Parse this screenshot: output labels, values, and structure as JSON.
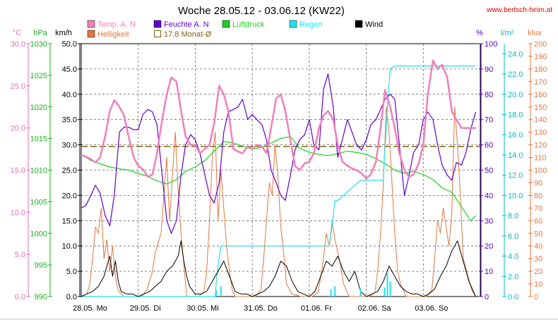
{
  "chart_data": {
    "type": "line",
    "title": "Woche 28.05.12 - 03.06.12 (KW22)",
    "source": "www.bertsch-heim.at",
    "grid": true,
    "axis_units": {
      "temp": "°C",
      "press": "hPa",
      "wind": "km/h",
      "hum": "%",
      "rain": "l/m²",
      "lux": "klux"
    },
    "axes": {
      "temp": {
        "min": 0,
        "max": 30,
        "ticks": [
          "0.0",
          "5.0",
          "10.0",
          "15.0",
          "20.0",
          "25.0",
          "30.0"
        ],
        "color": "#e070b0"
      },
      "press": {
        "min": 990,
        "max": 1030,
        "ticks": [
          "990",
          "995",
          "1000",
          "1005",
          "1010",
          "1015",
          "1020",
          "1025",
          "1030"
        ],
        "color": "#20b020"
      },
      "wind": {
        "min": 0,
        "max": 50,
        "ticks": [
          "0.0",
          "5.0",
          "10.0",
          "15.0",
          "20.0",
          "25.0",
          "30.0",
          "35.0",
          "40.0",
          "45.0",
          "50.0"
        ],
        "color": "#000000"
      },
      "hum": {
        "min": 0,
        "max": 100,
        "ticks": [
          "0",
          "10",
          "20",
          "30",
          "40",
          "50",
          "60",
          "70",
          "80",
          "90",
          "100"
        ],
        "color": "#5000c0"
      },
      "rain": {
        "min": 0,
        "max": 25,
        "ticks": [
          "0.0",
          "2.0",
          "4.0",
          "6.0",
          "8.0",
          "10.0",
          "12.0",
          "14.0",
          "16.0",
          "18.0",
          "20.0",
          "22.0",
          "24.0"
        ],
        "color": "#00b8c8"
      },
      "lux": {
        "min": 0,
        "max": 200,
        "ticks": [
          "0",
          "10",
          "20",
          "30",
          "40",
          "50",
          "60",
          "70",
          "80",
          "90",
          "100",
          "110",
          "120",
          "130",
          "140",
          "150",
          "160",
          "170",
          "180",
          "190",
          "200"
        ],
        "color": "#e07840"
      }
    },
    "x_labels": [
      "28.05. Mo",
      "29.05. Di",
      "30.05. Mi",
      "31.05. Do",
      "01.06. Fr",
      "02.06. Sa",
      "03.06. So"
    ],
    "legend": [
      {
        "label": "Temp. A. N",
        "color": "#f080b8",
        "shape": "fill"
      },
      {
        "label": "Feuchte A. N",
        "color": "#6000d0",
        "shape": "fill"
      },
      {
        "label": "Luftdruck",
        "color": "#20d020",
        "shape": "fill"
      },
      {
        "label": "Regen",
        "color": "#20e0f0",
        "shape": "fill"
      },
      {
        "label": "Wind",
        "color": "#000000",
        "shape": "fill"
      },
      {
        "label": "Helligkeit",
        "color": "#e07840",
        "shape": "fill"
      },
      {
        "label": "17.8 Monat-Ø",
        "color": "#806010",
        "shape": "outline"
      }
    ],
    "monthly_avg_temp": 17.8,
    "series": [
      {
        "name": "Temp. A. N",
        "axis": "temp",
        "color": "#f080b8",
        "width": 2.5,
        "x": [
          0,
          0.08,
          0.17,
          0.25,
          0.33,
          0.42,
          0.5,
          0.58,
          0.67,
          0.75,
          0.83,
          0.92,
          1,
          1.08,
          1.17,
          1.25,
          1.33,
          1.42,
          1.5,
          1.58,
          1.67,
          1.75,
          1.83,
          1.92,
          2,
          2.08,
          2.17,
          2.25,
          2.33,
          2.42,
          2.5,
          2.58,
          2.67,
          2.75,
          2.83,
          2.92,
          3,
          3.08,
          3.17,
          3.25,
          3.33,
          3.42,
          3.5,
          3.58,
          3.67,
          3.75,
          3.83,
          3.92,
          4,
          4.08,
          4.17,
          4.25,
          4.33,
          4.42,
          4.5,
          4.58,
          4.67,
          4.75,
          4.83,
          4.92,
          5,
          5.08,
          5.17,
          5.25,
          5.33,
          5.42,
          5.5,
          5.58,
          5.67,
          5.75,
          5.83,
          5.92,
          6,
          6.08,
          6.17,
          6.25,
          6.33,
          6.42,
          6.5,
          6.58,
          6.67,
          6.75,
          6.83,
          6.92
        ],
        "y": [
          16.8,
          16.6,
          16.3,
          15.9,
          16.5,
          19.0,
          22.0,
          23.3,
          22.5,
          21.5,
          19.0,
          16.5,
          15.5,
          15.1,
          14.2,
          14.5,
          17.0,
          21.0,
          24.0,
          26.0,
          25.5,
          22.0,
          19.0,
          18.0,
          18.0,
          17.0,
          17.5,
          18.0,
          20.5,
          25.0,
          24.0,
          22.0,
          17.5,
          17.2,
          17.0,
          17.8,
          17.5,
          18.0,
          17.8,
          17.0,
          20.0,
          23.5,
          24.0,
          22.0,
          18.5,
          15.5,
          15.0,
          15.8,
          16.0,
          17.0,
          20.0,
          21.5,
          22.0,
          21.0,
          18.0,
          16.0,
          15.5,
          15.2,
          15.0,
          14.6,
          14.0,
          14.5,
          16.0,
          20.0,
          24.5,
          22.5,
          20.0,
          17.0,
          15.0,
          14.2,
          14.5,
          15.8,
          18.0,
          24.0,
          28.0,
          27.0,
          27.5,
          26.0,
          22.0,
          21.0,
          20.0,
          20.0,
          20.0,
          20.0
        ]
      },
      {
        "name": "Feuchte A. N",
        "axis": "hum",
        "color": "#6000d0",
        "width": 1.2,
        "x": [
          0,
          0.08,
          0.17,
          0.25,
          0.33,
          0.42,
          0.5,
          0.58,
          0.67,
          0.75,
          0.83,
          0.92,
          1,
          1.08,
          1.17,
          1.25,
          1.33,
          1.42,
          1.5,
          1.58,
          1.67,
          1.75,
          1.83,
          1.92,
          2,
          2.08,
          2.17,
          2.25,
          2.33,
          2.42,
          2.5,
          2.58,
          2.67,
          2.75,
          2.83,
          2.92,
          3,
          3.08,
          3.17,
          3.25,
          3.33,
          3.42,
          3.5,
          3.58,
          3.67,
          3.75,
          3.83,
          3.92,
          4,
          4.08,
          4.17,
          4.25,
          4.33,
          4.42,
          4.5,
          4.58,
          4.67,
          4.75,
          4.83,
          4.92,
          5,
          5.08,
          5.17,
          5.25,
          5.33,
          5.42,
          5.5,
          5.58,
          5.67,
          5.75,
          5.83,
          5.92,
          6,
          6.08,
          6.17,
          6.25,
          6.33,
          6.42,
          6.5,
          6.58,
          6.67,
          6.75,
          6.83,
          6.92
        ],
        "y": [
          35,
          36,
          40,
          44,
          41,
          32,
          28,
          40,
          65,
          67,
          67,
          66,
          66,
          72,
          74,
          73,
          68,
          48,
          30,
          25,
          30,
          48,
          60,
          64,
          62,
          57,
          48,
          40,
          37,
          45,
          65,
          73,
          74,
          75,
          78,
          70,
          72,
          70,
          68,
          62,
          50,
          45,
          40,
          38,
          48,
          58,
          62,
          64,
          70,
          60,
          58,
          82,
          88,
          75,
          55,
          62,
          70,
          65,
          60,
          58,
          62,
          68,
          70,
          74,
          78,
          80,
          78,
          60,
          40,
          48,
          57,
          60,
          70,
          73,
          70,
          60,
          52,
          48,
          46,
          53,
          52,
          57,
          66,
          73
        ]
      },
      {
        "name": "Luftdruck",
        "axis": "press",
        "color": "#20d020",
        "width": 1.2,
        "x": [
          0,
          0.17,
          0.33,
          0.5,
          0.67,
          0.83,
          1,
          1.17,
          1.33,
          1.5,
          1.67,
          1.83,
          2,
          2.17,
          2.33,
          2.5,
          2.67,
          2.83,
          3,
          3.17,
          3.33,
          3.5,
          3.67,
          3.83,
          4,
          4.17,
          4.33,
          4.5,
          4.67,
          4.83,
          5,
          5.17,
          5.33,
          5.5,
          5.67,
          5.83,
          6,
          6.17,
          6.33,
          6.5,
          6.67,
          6.83,
          6.92
        ],
        "y": [
          1012.5,
          1011.5,
          1011,
          1010.5,
          1010.2,
          1010,
          1009.5,
          1009,
          1008.3,
          1007.8,
          1008.5,
          1009.8,
          1010.5,
          1011.5,
          1013,
          1014.5,
          1014.3,
          1013.8,
          1013.3,
          1013.6,
          1014.3,
          1015,
          1015.3,
          1013.5,
          1012.8,
          1012.5,
          1012.3,
          1012.6,
          1013,
          1012.8,
          1012.5,
          1011.8,
          1011,
          1010,
          1009.5,
          1009.8,
          1009.3,
          1008.5,
          1007.2,
          1006.5,
          1004.2,
          1002,
          1002.8
        ]
      },
      {
        "name": "Regen",
        "axis": "rain",
        "color": "#20e0f0",
        "width": 1.2,
        "x": [
          0,
          2.35,
          2.37,
          2.4,
          2.45,
          2.65,
          4.2,
          4.22,
          4.35,
          4.4,
          4.45,
          4.5,
          4.9,
          5.3,
          5.32,
          5.35,
          5.38,
          5.42,
          5.5,
          6.0,
          6.92
        ],
        "y": [
          0,
          0,
          1.5,
          3,
          5,
          5,
          5,
          5,
          5,
          7,
          9.5,
          9.5,
          11.5,
          11.5,
          14,
          16.5,
          19.5,
          22.5,
          22.8,
          22.8,
          22.8
        ]
      },
      {
        "name": "Wind",
        "axis": "wind",
        "color": "#000000",
        "width": 1,
        "x": [
          0,
          0.1,
          0.2,
          0.3,
          0.4,
          0.45,
          0.5,
          0.55,
          0.6,
          0.65,
          0.7,
          0.8,
          0.9,
          1,
          1.1,
          1.2,
          1.3,
          1.4,
          1.5,
          1.6,
          1.7,
          1.75,
          1.8,
          1.85,
          1.9,
          2.0,
          2.1,
          2.2,
          2.3,
          2.4,
          2.5,
          2.6,
          2.7,
          2.8,
          2.9,
          3.0,
          3.1,
          3.2,
          3.3,
          3.4,
          3.5,
          3.6,
          3.7,
          3.8,
          3.9,
          4.0,
          4.1,
          4.2,
          4.3,
          4.4,
          4.5,
          4.6,
          4.7,
          4.8,
          4.9,
          5.0,
          5.1,
          5.2,
          5.3,
          5.4,
          5.5,
          5.6,
          5.7,
          5.8,
          5.9,
          6.0,
          6.1,
          6.2,
          6.3,
          6.4,
          6.5,
          6.6,
          6.7,
          6.8,
          6.92
        ],
        "y": [
          0,
          0.5,
          1,
          2,
          4,
          6,
          8,
          4,
          7,
          3,
          1,
          0.5,
          0.5,
          0,
          0.5,
          1,
          2,
          3,
          5,
          6,
          8,
          11,
          7,
          4,
          2,
          0.5,
          0.5,
          1,
          3,
          5,
          7,
          4,
          1,
          0.5,
          0.5,
          0,
          0.5,
          1,
          2,
          4,
          7,
          6,
          3,
          1,
          0.5,
          0,
          1,
          4,
          7,
          6,
          8,
          5,
          3,
          5,
          1,
          0,
          0.5,
          1,
          3,
          6,
          4,
          2,
          1,
          0.5,
          0.5,
          0,
          0.5,
          1.5,
          4,
          6,
          9,
          11,
          7,
          3,
          0
        ]
      },
      {
        "name": "Helligkeit",
        "axis": "lux",
        "color": "#e07840",
        "width": 1,
        "x": [
          0,
          0.1,
          0.15,
          0.2,
          0.25,
          0.3,
          0.35,
          0.4,
          0.45,
          0.5,
          0.55,
          0.6,
          0.65,
          0.7,
          0.75,
          0.85,
          1.05,
          1.15,
          1.25,
          1.3,
          1.4,
          1.45,
          1.5,
          1.55,
          1.6,
          1.65,
          1.7,
          1.75,
          1.8,
          1.85,
          2.05,
          2.15,
          2.2,
          2.25,
          2.3,
          2.35,
          2.4,
          2.45,
          2.5,
          2.55,
          2.6,
          2.65,
          2.7,
          2.85,
          3.05,
          3.15,
          3.2,
          3.25,
          3.3,
          3.35,
          3.4,
          3.45,
          3.5,
          3.55,
          3.6,
          3.7,
          3.85,
          4.05,
          4.15,
          4.2,
          4.25,
          4.3,
          4.35,
          4.4,
          4.45,
          4.5,
          4.55,
          4.6,
          4.65,
          4.7,
          4.85,
          5.05,
          5.15,
          5.2,
          5.25,
          5.3,
          5.35,
          5.4,
          5.45,
          5.5,
          5.55,
          5.6,
          5.65,
          5.7,
          5.85,
          6.05,
          6.15,
          6.2,
          6.25,
          6.3,
          6.35,
          6.4,
          6.45,
          6.5,
          6.55,
          6.6,
          6.65,
          6.7,
          6.85,
          6.92
        ],
        "y": [
          0,
          2,
          10,
          30,
          55,
          50,
          70,
          30,
          45,
          20,
          40,
          15,
          5,
          2,
          0,
          0,
          0,
          5,
          20,
          35,
          50,
          80,
          110,
          60,
          95,
          130,
          85,
          50,
          25,
          0,
          0,
          3,
          20,
          60,
          110,
          130,
          60,
          100,
          70,
          40,
          20,
          5,
          0,
          0,
          0,
          5,
          30,
          60,
          90,
          80,
          120,
          95,
          55,
          35,
          10,
          2,
          0,
          0,
          3,
          15,
          30,
          50,
          40,
          60,
          45,
          35,
          25,
          10,
          5,
          0,
          0,
          0,
          3,
          20,
          50,
          90,
          150,
          130,
          90,
          50,
          20,
          10,
          5,
          0,
          0,
          0,
          5,
          30,
          60,
          50,
          70,
          55,
          40,
          65,
          150,
          120,
          80,
          30,
          5,
          0
        ]
      }
    ]
  }
}
